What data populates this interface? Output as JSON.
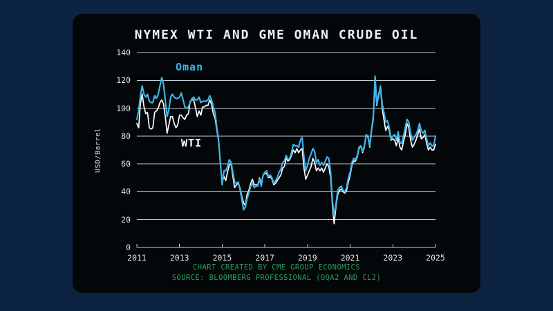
{
  "panel": {
    "title": "NYMEX WTI AND GME OMAN CRUDE OIL",
    "footer_line1": "CHART CREATED BY CME GROUP ECONOMICS",
    "footer_line2": "SOURCE: BLOOMBERG PROFESSIONAL (OQA2 AND CL2)"
  },
  "colors": {
    "page_background": "#0d2342",
    "panel_background": "#030709",
    "grid": "#c7cdd5",
    "wti_line": "#ffffff",
    "oman_line": "#3fb3e6",
    "footer_green": "#2e9c56"
  },
  "chart_data": {
    "type": "line",
    "title": "NYMEX WTI AND GME OMAN CRUDE OIL",
    "xlabel": "",
    "ylabel": "USD/Barrel",
    "ylim": [
      0,
      140
    ],
    "yticks": [
      0,
      20,
      40,
      60,
      80,
      100,
      120,
      140
    ],
    "xticks": [
      2011,
      2013,
      2015,
      2017,
      2019,
      2021,
      2023,
      2025
    ],
    "x_range": [
      2011,
      2025
    ],
    "frequency": "monthly",
    "grid": "horizontal",
    "legend_position": "inline-labels",
    "series": [
      {
        "key": "wti",
        "name": "WTI",
        "color": "#ffffff",
        "values": [
          89,
          86,
          103,
          110,
          101,
          96,
          97,
          86,
          85,
          86,
          97,
          98,
          100,
          104,
          106,
          103,
          94,
          82,
          88,
          94,
          94,
          89,
          86,
          88,
          95,
          95,
          93,
          92,
          95,
          96,
          105,
          106,
          106,
          100,
          94,
          98,
          95,
          101,
          101,
          102,
          102,
          106,
          103,
          96,
          93,
          84,
          76,
          59,
          47,
          51,
          48,
          54,
          59,
          60,
          51,
          43,
          45,
          46,
          43,
          37,
          32,
          30,
          38,
          41,
          46,
          49,
          45,
          45,
          45,
          50,
          46,
          52,
          53,
          53,
          50,
          51,
          49,
          45,
          46,
          48,
          50,
          52,
          57,
          58,
          64,
          62,
          63,
          66,
          70,
          68,
          71,
          68,
          70,
          71,
          57,
          49,
          52,
          55,
          58,
          64,
          61,
          55,
          57,
          55,
          57,
          54,
          57,
          60,
          58,
          50,
          30,
          17,
          29,
          38,
          41,
          42,
          40,
          39,
          41,
          47,
          52,
          59,
          62,
          62,
          65,
          71,
          73,
          68,
          72,
          81,
          79,
          72,
          83,
          92,
          118,
          102,
          110,
          115,
          100,
          92,
          84,
          87,
          84,
          77,
          78,
          77,
          73,
          79,
          72,
          70,
          76,
          81,
          89,
          86,
          77,
          72,
          74,
          77,
          81,
          85,
          78,
          79,
          81,
          75,
          70,
          72,
          70,
          70,
          74
        ]
      },
      {
        "key": "oman",
        "name": "Oman",
        "color": "#3fb3e6",
        "values": [
          92,
          98,
          109,
          116,
          110,
          108,
          110,
          105,
          104,
          104,
          109,
          107,
          110,
          116,
          122,
          117,
          106,
          94,
          99,
          108,
          110,
          108,
          107,
          107,
          108,
          111,
          106,
          101,
          100,
          101,
          104,
          107,
          108,
          106,
          106,
          108,
          104,
          105,
          105,
          105,
          106,
          109,
          106,
          101,
          97,
          86,
          77,
          60,
          45,
          55,
          55,
          58,
          63,
          61,
          54,
          47,
          46,
          47,
          42,
          35,
          27,
          29,
          35,
          39,
          44,
          46,
          43,
          44,
          44,
          49,
          44,
          52,
          54,
          55,
          51,
          52,
          50,
          46,
          48,
          50,
          54,
          56,
          61,
          62,
          66,
          63,
          64,
          68,
          74,
          73,
          73,
          72,
          77,
          79,
          65,
          55,
          59,
          64,
          67,
          71,
          69,
          61,
          63,
          59,
          61,
          59,
          62,
          65,
          64,
          54,
          33,
          23,
          31,
          41,
          43,
          44,
          41,
          40,
          43,
          50,
          54,
          61,
          64,
          63,
          66,
          72,
          73,
          69,
          73,
          81,
          80,
          73,
          84,
          94,
          123,
          103,
          108,
          116,
          103,
          97,
          90,
          91,
          86,
          78,
          80,
          81,
          77,
          83,
          75,
          75,
          80,
          86,
          92,
          90,
          82,
          77,
          79,
          81,
          84,
          89,
          84,
          82,
          84,
          78,
          73,
          75,
          73,
          73,
          80
        ]
      }
    ]
  }
}
